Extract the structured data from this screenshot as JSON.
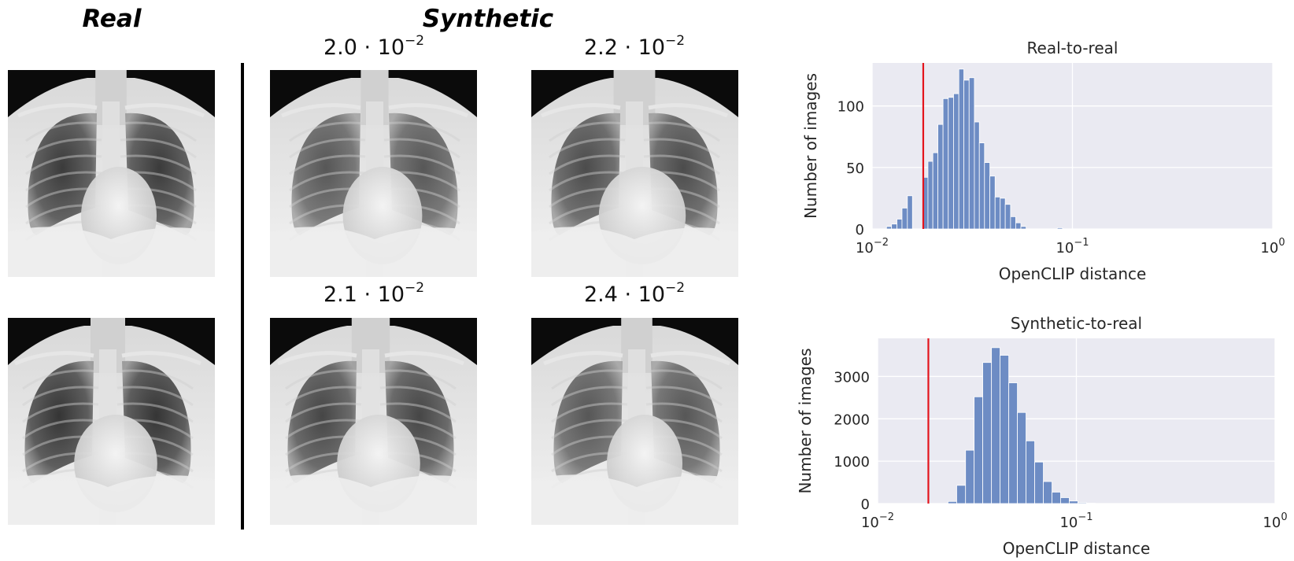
{
  "headings": {
    "real": "Real",
    "synthetic": "Synthetic"
  },
  "synthetic_labels": [
    {
      "mantissa": "2.0",
      "exponent": "−2"
    },
    {
      "mantissa": "2.2",
      "exponent": "−2"
    },
    {
      "mantissa": "2.1",
      "exponent": "−2"
    },
    {
      "mantissa": "2.4",
      "exponent": "−2"
    }
  ],
  "images": [
    {
      "group": "real",
      "content": "chest x-ray"
    },
    {
      "group": "real",
      "content": "chest x-ray"
    },
    {
      "group": "synthetic",
      "content": "chest x-ray"
    },
    {
      "group": "synthetic",
      "content": "chest x-ray"
    },
    {
      "group": "synthetic",
      "content": "chest x-ray"
    },
    {
      "group": "synthetic",
      "content": "chest x-ray"
    }
  ],
  "colors": {
    "bars": "#6d8cc4",
    "threshold": "#e3141c",
    "plot_bg": "#eaeaf2",
    "grid": "#ffffff"
  },
  "chart_data": [
    {
      "type": "histogram",
      "title": "Real-to-real",
      "xlabel": "OpenCLIP distance",
      "ylabel": "Number of images",
      "xscale": "log",
      "xlim": [
        0.01,
        1
      ],
      "ylim": [
        0,
        135
      ],
      "xticks": [
        0.01,
        0.1,
        1
      ],
      "xtick_labels": [
        {
          "base": "10",
          "exp": "−2"
        },
        {
          "base": "10",
          "exp": "−1"
        },
        {
          "base": "10",
          "exp": "0"
        }
      ],
      "yticks": [
        0,
        50,
        100
      ],
      "ytick_labels": [
        "0",
        "50",
        "100"
      ],
      "threshold": 0.018,
      "bins": [
        [
          0.0118,
          0.0125,
          2
        ],
        [
          0.0125,
          0.0133,
          4
        ],
        [
          0.0133,
          0.0141,
          8
        ],
        [
          0.0141,
          0.015,
          17
        ],
        [
          0.015,
          0.0159,
          27
        ],
        [
          0.0159,
          0.0169,
          0
        ],
        [
          0.0169,
          0.0179,
          0
        ],
        [
          0.0179,
          0.019,
          42
        ],
        [
          0.019,
          0.0201,
          55
        ],
        [
          0.0201,
          0.0213,
          62
        ],
        [
          0.0213,
          0.0226,
          85
        ],
        [
          0.0226,
          0.024,
          106
        ],
        [
          0.024,
          0.0255,
          107
        ],
        [
          0.0255,
          0.0271,
          110
        ],
        [
          0.0271,
          0.0287,
          130
        ],
        [
          0.0287,
          0.0305,
          121
        ],
        [
          0.0305,
          0.0324,
          123
        ],
        [
          0.0324,
          0.0343,
          87
        ],
        [
          0.0343,
          0.0364,
          70
        ],
        [
          0.0364,
          0.0387,
          54
        ],
        [
          0.0387,
          0.0411,
          43
        ],
        [
          0.0411,
          0.0436,
          26
        ],
        [
          0.0436,
          0.0462,
          25
        ],
        [
          0.0462,
          0.0491,
          20
        ],
        [
          0.0491,
          0.0521,
          10
        ],
        [
          0.0521,
          0.0553,
          5
        ],
        [
          0.0553,
          0.0587,
          2
        ],
        [
          0.0587,
          0.0623,
          0
        ],
        [
          0.0623,
          0.0661,
          0
        ],
        [
          0.0661,
          0.0702,
          0
        ],
        [
          0.0702,
          0.0745,
          0
        ],
        [
          0.0745,
          0.0791,
          0
        ],
        [
          0.0791,
          0.084,
          0
        ],
        [
          0.084,
          0.0892,
          1
        ]
      ]
    },
    {
      "type": "histogram",
      "title": "Synthetic-to-real",
      "xlabel": "OpenCLIP distance",
      "ylabel": "Number of images",
      "xscale": "log",
      "xlim": [
        0.01,
        1
      ],
      "ylim": [
        0,
        3900
      ],
      "xticks": [
        0.01,
        0.1,
        1
      ],
      "xtick_labels": [
        {
          "base": "10",
          "exp": "−2"
        },
        {
          "base": "10",
          "exp": "−1"
        },
        {
          "base": "10",
          "exp": "0"
        }
      ],
      "yticks": [
        0,
        1000,
        2000,
        3000
      ],
      "ytick_labels": [
        "0",
        "1000",
        "2000",
        "3000"
      ],
      "threshold": 0.018,
      "bins": [
        [
          0.0226,
          0.025,
          50
        ],
        [
          0.025,
          0.0277,
          430
        ],
        [
          0.0277,
          0.0306,
          1260
        ],
        [
          0.0306,
          0.0338,
          2520
        ],
        [
          0.0338,
          0.0374,
          3330
        ],
        [
          0.0374,
          0.0413,
          3680
        ],
        [
          0.0413,
          0.0457,
          3500
        ],
        [
          0.0457,
          0.0505,
          2850
        ],
        [
          0.0505,
          0.0558,
          2150
        ],
        [
          0.0558,
          0.0617,
          1480
        ],
        [
          0.0617,
          0.0682,
          980
        ],
        [
          0.0682,
          0.0754,
          520
        ],
        [
          0.0754,
          0.0833,
          270
        ],
        [
          0.0833,
          0.0921,
          140
        ],
        [
          0.0921,
          0.1018,
          60
        ],
        [
          0.1018,
          0.1125,
          20
        ],
        [
          0.1125,
          0.1244,
          8
        ]
      ]
    }
  ]
}
